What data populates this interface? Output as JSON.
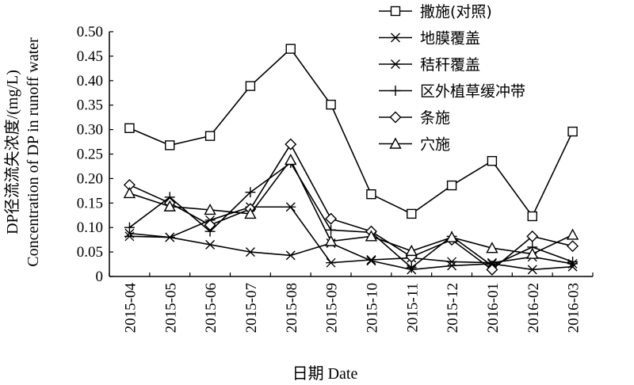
{
  "chart_data": {
    "type": "line",
    "title": "",
    "xlabel": "日期 Date",
    "ylabel_cn": "DP径流流失浓度/(mg/L)",
    "ylabel_en": "Concentration of DP in runoff water",
    "categories": [
      "2015-04",
      "2015-05",
      "2015-06",
      "2015-07",
      "2015-08",
      "2015-09",
      "2015-10",
      "2015-11",
      "2015-12",
      "2016-01",
      "2016-02",
      "2016-03"
    ],
    "ylim": [
      0,
      0.5
    ],
    "yticks": [
      "0",
      "0.05",
      "0.10",
      "0.15",
      "0.20",
      "0.25",
      "0.30",
      "0.35",
      "0.40",
      "0.45",
      "0.50"
    ],
    "grid": false,
    "legend_position": "top-right",
    "series": [
      {
        "name": "撒施(对照)",
        "marker": "square",
        "values": [
          0.303,
          0.268,
          0.287,
          0.389,
          0.465,
          0.351,
          0.168,
          0.128,
          0.186,
          0.236,
          0.123,
          0.296
        ]
      },
      {
        "name": "地膜覆盖",
        "marker": "x",
        "values": [
          0.088,
          0.08,
          0.065,
          0.05,
          0.043,
          0.068,
          0.032,
          0.014,
          0.022,
          0.026,
          0.014,
          0.02
        ]
      },
      {
        "name": "秸秆覆盖",
        "marker": "asterisk",
        "values": [
          0.082,
          0.08,
          0.115,
          0.142,
          0.142,
          0.028,
          0.034,
          0.038,
          0.03,
          0.028,
          0.04,
          0.026
        ]
      },
      {
        "name": "区外植草缓冲带",
        "marker": "plus",
        "values": [
          0.1,
          0.162,
          0.092,
          0.172,
          0.232,
          0.095,
          0.09,
          0.018,
          0.082,
          0.022,
          0.06,
          0.03
        ]
      },
      {
        "name": "条施",
        "marker": "diamond",
        "values": [
          0.187,
          0.15,
          0.105,
          0.138,
          0.27,
          0.118,
          0.092,
          0.04,
          0.075,
          0.014,
          0.082,
          0.062
        ]
      },
      {
        "name": "穴施",
        "marker": "triangle",
        "values": [
          0.17,
          0.143,
          0.136,
          0.128,
          0.238,
          0.072,
          0.082,
          0.052,
          0.08,
          0.058,
          0.046,
          0.085
        ]
      }
    ]
  }
}
